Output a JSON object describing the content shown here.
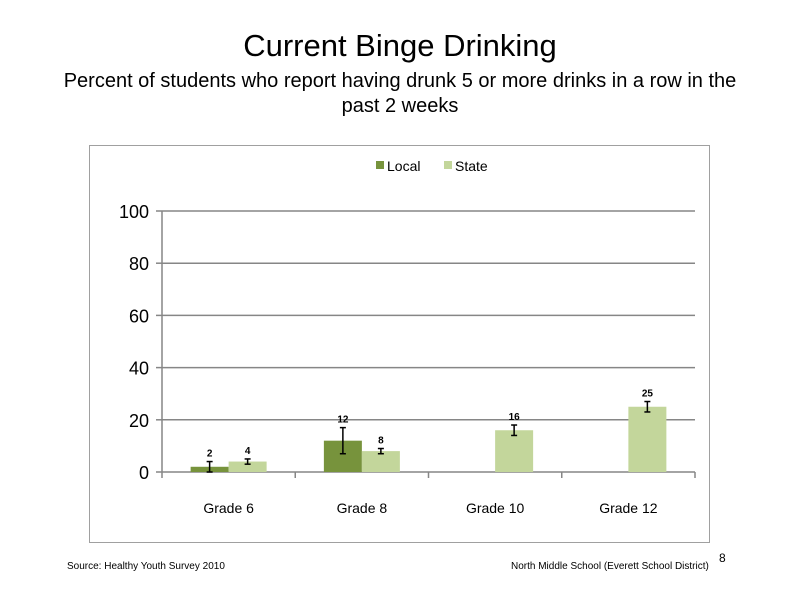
{
  "slide": {
    "title": "Current Binge Drinking",
    "subtitle": "Percent of students who report having drunk 5 or more drinks in a row in the past 2 weeks",
    "source": "Source: Healthy Youth Survey 2010",
    "school": "North Middle  School (Everett School District)",
    "page_number": "8"
  },
  "chart_data": {
    "type": "bar",
    "categories": [
      "Grade 6",
      "Grade 8",
      "Grade 10",
      "Grade 12"
    ],
    "series": [
      {
        "name": "Local",
        "color": "#77933c",
        "values": [
          2,
          12,
          null,
          null
        ],
        "error_low": [
          0,
          7,
          null,
          null
        ],
        "error_high": [
          4,
          17,
          null,
          null
        ]
      },
      {
        "name": "State",
        "color": "#c3d69b",
        "values": [
          4,
          8,
          16,
          25
        ],
        "error_low": [
          3,
          7,
          14,
          23
        ],
        "error_high": [
          5,
          9,
          18,
          27
        ]
      }
    ],
    "ylim": [
      0,
      100
    ],
    "yticks": [
      0,
      20,
      40,
      60,
      80,
      100
    ],
    "grid": true,
    "legend_position": "top-center"
  }
}
